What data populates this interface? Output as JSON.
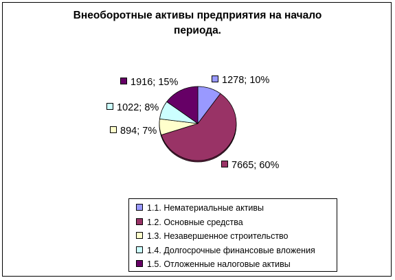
{
  "chart_data": {
    "type": "pie",
    "title_lines": [
      "Внеоборотные активы предприятия на начало",
      "периода."
    ],
    "series": [
      {
        "name": "1.1. Нематериальные активы",
        "value": 1278,
        "percent": 10,
        "label": "1278; 10%",
        "color": "#9999ff"
      },
      {
        "name": "1.2. Основные средства",
        "value": 7665,
        "percent": 60,
        "label": "7665; 60%",
        "color": "#993366"
      },
      {
        "name": "1.3. Незавершенное строительство",
        "value": 894,
        "percent": 7,
        "label": "894; 7%",
        "color": "#ffffcc"
      },
      {
        "name": "1.4. Долгосрочные финансовые вложения",
        "value": 1022,
        "percent": 8,
        "label": "1022; 8%",
        "color": "#ccffff"
      },
      {
        "name": "1.5. Отложенные налоговые активы",
        "value": 1916,
        "percent": 15,
        "label": "1916; 15%",
        "color": "#660066"
      }
    ],
    "legend_position": "bottom",
    "data_labels": "value; percent"
  }
}
